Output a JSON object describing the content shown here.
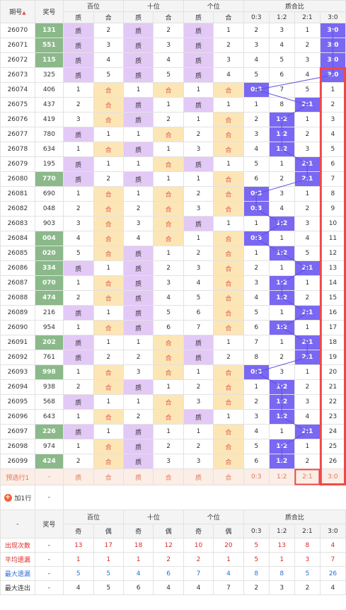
{
  "headers": {
    "issue": "期号",
    "sort_icon": "▲",
    "prize": "奖号",
    "hundreds": "百位",
    "tens": "十位",
    "units": "个位",
    "ratio": "质合比",
    "prime": "质",
    "composite": "合",
    "odd": "奇",
    "even": "偶",
    "ratio_cols": [
      "0:3",
      "1:2",
      "2:1",
      "3:0"
    ]
  },
  "rows": [
    {
      "issue": "26070",
      "num": "131",
      "hl": true,
      "h": [
        "prime",
        "2"
      ],
      "t": [
        "prime",
        "2"
      ],
      "u": [
        "prime",
        "1"
      ],
      "r": [
        "2",
        "3",
        "1",
        "3:0"
      ],
      "hit": 3
    },
    {
      "issue": "26071",
      "num": "551",
      "hl": true,
      "h": [
        "prime",
        "3"
      ],
      "t": [
        "prime",
        "3"
      ],
      "u": [
        "prime",
        "2"
      ],
      "r": [
        "3",
        "4",
        "2",
        "3:0"
      ],
      "hit": 3
    },
    {
      "issue": "26072",
      "num": "115",
      "hl": true,
      "h": [
        "prime",
        "4"
      ],
      "t": [
        "prime",
        "4"
      ],
      "u": [
        "prime",
        "3"
      ],
      "r": [
        "4",
        "5",
        "3",
        "3:0"
      ],
      "hit": 3
    },
    {
      "issue": "26073",
      "num": "325",
      "hl": false,
      "h": [
        "prime",
        "5"
      ],
      "t": [
        "prime",
        "5"
      ],
      "u": [
        "prime",
        "4"
      ],
      "r": [
        "5",
        "6",
        "4",
        "3:0"
      ],
      "hit": 3
    },
    {
      "issue": "26074",
      "num": "406",
      "hl": false,
      "h": [
        "1",
        "comp"
      ],
      "t": [
        "1",
        "comp"
      ],
      "u": [
        "1",
        "comp"
      ],
      "r": [
        "0:3",
        "7",
        "5",
        "1"
      ],
      "hit": 0
    },
    {
      "issue": "26075",
      "num": "437",
      "hl": false,
      "h": [
        "2",
        "comp"
      ],
      "t": [
        "prime",
        "1"
      ],
      "u": [
        "prime",
        "1"
      ],
      "r": [
        "1",
        "8",
        "2:1",
        "2"
      ],
      "hit": 2
    },
    {
      "issue": "26076",
      "num": "419",
      "hl": false,
      "h": [
        "3",
        "comp"
      ],
      "t": [
        "prime",
        "2"
      ],
      "u": [
        "1",
        "comp"
      ],
      "r": [
        "2",
        "1:2",
        "1",
        "3"
      ],
      "hit": 1
    },
    {
      "issue": "26077",
      "num": "780",
      "hl": false,
      "h": [
        "prime",
        "1"
      ],
      "t": [
        "1",
        "comp"
      ],
      "u": [
        "2",
        "comp"
      ],
      "r": [
        "3",
        "1:2",
        "2",
        "4"
      ],
      "hit": 1
    },
    {
      "issue": "26078",
      "num": "634",
      "hl": false,
      "h": [
        "1",
        "comp"
      ],
      "t": [
        "prime",
        "1"
      ],
      "u": [
        "3",
        "comp"
      ],
      "r": [
        "4",
        "1:2",
        "3",
        "5"
      ],
      "hit": 1
    },
    {
      "issue": "26079",
      "num": "195",
      "hl": false,
      "h": [
        "prime",
        "1"
      ],
      "t": [
        "1",
        "comp"
      ],
      "u": [
        "prime",
        "1"
      ],
      "r": [
        "5",
        "1",
        "2:1",
        "6"
      ],
      "hit": 2
    },
    {
      "issue": "26080",
      "num": "770",
      "hl": true,
      "h": [
        "prime",
        "2"
      ],
      "t": [
        "prime",
        "1"
      ],
      "u": [
        "1",
        "comp"
      ],
      "r": [
        "6",
        "2",
        "2:1",
        "7"
      ],
      "hit": 2
    },
    {
      "issue": "26081",
      "num": "690",
      "hl": false,
      "h": [
        "1",
        "comp"
      ],
      "t": [
        "1",
        "comp"
      ],
      "u": [
        "2",
        "comp"
      ],
      "r": [
        "0:3",
        "3",
        "1",
        "8"
      ],
      "hit": 0
    },
    {
      "issue": "26082",
      "num": "048",
      "hl": false,
      "h": [
        "2",
        "comp"
      ],
      "t": [
        "2",
        "comp"
      ],
      "u": [
        "3",
        "comp"
      ],
      "r": [
        "0:3",
        "4",
        "2",
        "9"
      ],
      "hit": 0
    },
    {
      "issue": "26083",
      "num": "903",
      "hl": false,
      "h": [
        "3",
        "comp"
      ],
      "t": [
        "3",
        "comp"
      ],
      "u": [
        "prime",
        "1"
      ],
      "r": [
        "1",
        "1:2",
        "3",
        "10"
      ],
      "hit": 1
    },
    {
      "issue": "26084",
      "num": "004",
      "hl": true,
      "h": [
        "4",
        "comp"
      ],
      "t": [
        "4",
        "comp"
      ],
      "u": [
        "1",
        "comp"
      ],
      "r": [
        "0:3",
        "1",
        "4",
        "11"
      ],
      "hit": 0
    },
    {
      "issue": "26085",
      "num": "020",
      "hl": true,
      "h": [
        "5",
        "comp"
      ],
      "t": [
        "prime",
        "1"
      ],
      "u": [
        "2",
        "comp"
      ],
      "r": [
        "1",
        "1:2",
        "5",
        "12"
      ],
      "hit": 1
    },
    {
      "issue": "26086",
      "num": "334",
      "hl": true,
      "h": [
        "prime",
        "1"
      ],
      "t": [
        "prime",
        "2"
      ],
      "u": [
        "3",
        "comp"
      ],
      "r": [
        "2",
        "1",
        "2:1",
        "13"
      ],
      "hit": 2
    },
    {
      "issue": "26087",
      "num": "070",
      "hl": true,
      "h": [
        "1",
        "comp"
      ],
      "t": [
        "prime",
        "3"
      ],
      "u": [
        "4",
        "comp"
      ],
      "r": [
        "3",
        "1:2",
        "1",
        "14"
      ],
      "hit": 1
    },
    {
      "issue": "26088",
      "num": "474",
      "hl": true,
      "h": [
        "2",
        "comp"
      ],
      "t": [
        "prime",
        "4"
      ],
      "u": [
        "5",
        "comp"
      ],
      "r": [
        "4",
        "1:2",
        "2",
        "15"
      ],
      "hit": 1
    },
    {
      "issue": "26089",
      "num": "216",
      "hl": false,
      "h": [
        "prime",
        "1"
      ],
      "t": [
        "prime",
        "5"
      ],
      "u": [
        "6",
        "comp"
      ],
      "r": [
        "5",
        "1",
        "2:1",
        "16"
      ],
      "hit": 2
    },
    {
      "issue": "26090",
      "num": "954",
      "hl": false,
      "h": [
        "1",
        "comp"
      ],
      "t": [
        "prime",
        "6"
      ],
      "u": [
        "7",
        "comp"
      ],
      "r": [
        "6",
        "1:2",
        "1",
        "17"
      ],
      "hit": 1
    },
    {
      "issue": "26091",
      "num": "202",
      "hl": true,
      "h": [
        "prime",
        "1"
      ],
      "t": [
        "1",
        "comp"
      ],
      "u": [
        "prime",
        "1"
      ],
      "r": [
        "7",
        "1",
        "2:1",
        "18"
      ],
      "hit": 2
    },
    {
      "issue": "26092",
      "num": "761",
      "hl": false,
      "h": [
        "prime",
        "2"
      ],
      "t": [
        "2",
        "comp"
      ],
      "u": [
        "prime",
        "2"
      ],
      "r": [
        "8",
        "2",
        "2:1",
        "19"
      ],
      "hit": 2
    },
    {
      "issue": "26093",
      "num": "998",
      "hl": true,
      "h": [
        "1",
        "comp"
      ],
      "t": [
        "3",
        "comp"
      ],
      "u": [
        "1",
        "comp"
      ],
      "r": [
        "0:3",
        "3",
        "1",
        "20"
      ],
      "hit": 0
    },
    {
      "issue": "26094",
      "num": "938",
      "hl": false,
      "h": [
        "2",
        "comp"
      ],
      "t": [
        "prime",
        "1"
      ],
      "u": [
        "2",
        "comp"
      ],
      "r": [
        "1",
        "1:2",
        "2",
        "21"
      ],
      "hit": 1
    },
    {
      "issue": "26095",
      "num": "568",
      "hl": false,
      "h": [
        "prime",
        "1"
      ],
      "t": [
        "1",
        "comp"
      ],
      "u": [
        "3",
        "comp"
      ],
      "r": [
        "2",
        "1:2",
        "3",
        "22"
      ],
      "hit": 1
    },
    {
      "issue": "26096",
      "num": "643",
      "hl": false,
      "h": [
        "1",
        "comp"
      ],
      "t": [
        "2",
        "comp"
      ],
      "u": [
        "prime",
        "1"
      ],
      "r": [
        "3",
        "1:2",
        "4",
        "23"
      ],
      "hit": 1
    },
    {
      "issue": "26097",
      "num": "226",
      "hl": true,
      "h": [
        "prime",
        "1"
      ],
      "t": [
        "prime",
        "1"
      ],
      "u": [
        "1",
        "comp"
      ],
      "r": [
        "4",
        "1",
        "2:1",
        "24"
      ],
      "hit": 2
    },
    {
      "issue": "26098",
      "num": "974",
      "hl": false,
      "h": [
        "1",
        "comp"
      ],
      "t": [
        "prime",
        "2"
      ],
      "u": [
        "2",
        "comp"
      ],
      "r": [
        "5",
        "1:2",
        "1",
        "25"
      ],
      "hit": 1
    },
    {
      "issue": "26099",
      "num": "424",
      "hl": true,
      "h": [
        "2",
        "comp"
      ],
      "t": [
        "prime",
        "3"
      ],
      "u": [
        "3",
        "comp"
      ],
      "r": [
        "6",
        "1:2",
        "2",
        "26"
      ],
      "hit": 1
    }
  ],
  "preselect": {
    "label": "预选行1",
    "num": "-",
    "cells": [
      "质",
      "合",
      "质",
      "合",
      "质",
      "合",
      "0:3",
      "1:2",
      "2:1",
      "3:0"
    ]
  },
  "add_row": {
    "label": "加1行",
    "value": "-"
  },
  "stats_header": {
    "dash": "-",
    "prize": "奖号"
  },
  "stats": [
    {
      "label": "出现次数",
      "num": "-",
      "vals": [
        "13",
        "17",
        "18",
        "12",
        "10",
        "20",
        "5",
        "13",
        "8",
        "4"
      ],
      "style": "red"
    },
    {
      "label": "平均遗漏",
      "num": "-",
      "vals": [
        "1",
        "1",
        "1",
        "2",
        "2",
        "1",
        "5",
        "1",
        "3",
        "7"
      ],
      "style": "red"
    },
    {
      "label": "最大遗漏",
      "num": "-",
      "vals": [
        "5",
        "5",
        "4",
        "6",
        "7",
        "4",
        "8",
        "8",
        "5",
        "26"
      ],
      "style": "blue"
    },
    {
      "label": "最大连出",
      "num": "-",
      "vals": [
        "4",
        "5",
        "6",
        "4",
        "4",
        "7",
        "2",
        "3",
        "2",
        "4"
      ],
      "style": "plain"
    }
  ],
  "colors": {
    "prime": "#e2c9f6",
    "composite": "#fde6b6",
    "hit": "#7a67f2",
    "highlight": "#8bb98a",
    "box": "#f0484a",
    "line": "#5a50e0"
  }
}
